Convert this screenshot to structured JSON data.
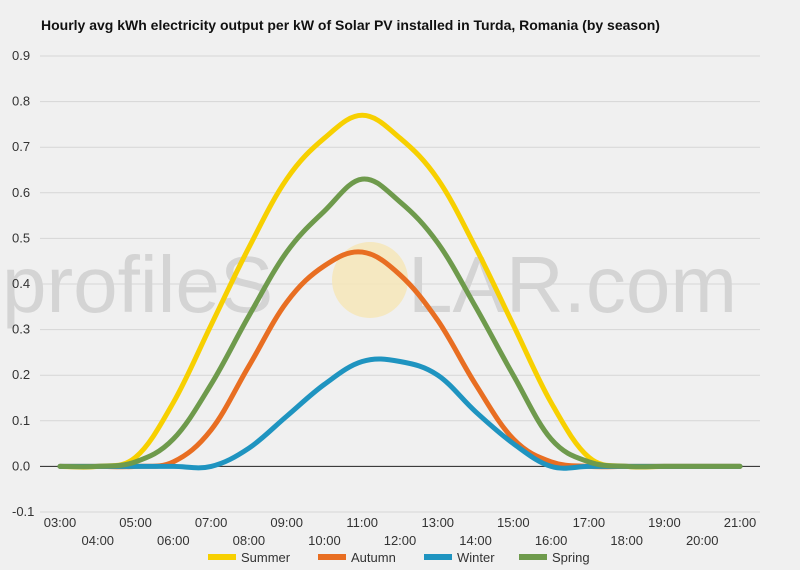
{
  "watermark": {
    "left_text": "profileS",
    "right_text": "LAR.com"
  },
  "chart_data": {
    "type": "line",
    "title": "Hourly avg kWh electricity output per kW of Solar PV installed in Turda, Romania (by season)",
    "xlabel": "",
    "ylabel": "",
    "ylim": [
      -0.1,
      0.9
    ],
    "yticks": [
      -0.1,
      0.0,
      0.1,
      0.2,
      0.3,
      0.4,
      0.5,
      0.6,
      0.7,
      0.8,
      0.9
    ],
    "ytick_labels": [
      "-0.1",
      "0.0",
      "0.1",
      "0.2",
      "0.3",
      "0.4",
      "0.5",
      "0.6",
      "0.7",
      "0.8",
      "0.9"
    ],
    "x": [
      "03:00",
      "04:00",
      "05:00",
      "06:00",
      "07:00",
      "08:00",
      "09:00",
      "10:00",
      "11:00",
      "12:00",
      "13:00",
      "14:00",
      "15:00",
      "16:00",
      "17:00",
      "18:00",
      "19:00",
      "20:00",
      "21:00"
    ],
    "grid": true,
    "legend_position": "bottom",
    "series": [
      {
        "name": "Summer",
        "color": "#f7d000",
        "values": [
          0.0,
          0.0,
          0.02,
          0.14,
          0.31,
          0.48,
          0.63,
          0.72,
          0.77,
          0.72,
          0.63,
          0.48,
          0.31,
          0.14,
          0.02,
          0.0,
          0.0,
          0.0,
          0.0
        ]
      },
      {
        "name": "Autumn",
        "color": "#e86e22",
        "values": [
          0.0,
          0.0,
          0.0,
          0.01,
          0.08,
          0.22,
          0.36,
          0.44,
          0.47,
          0.42,
          0.32,
          0.18,
          0.06,
          0.01,
          0.0,
          0.0,
          0.0,
          0.0,
          0.0
        ]
      },
      {
        "name": "Winter",
        "color": "#1f94c0",
        "values": [
          0.0,
          0.0,
          0.0,
          0.0,
          0.0,
          0.04,
          0.11,
          0.18,
          0.23,
          0.23,
          0.2,
          0.12,
          0.05,
          0.0,
          0.0,
          0.0,
          0.0,
          0.0,
          0.0
        ]
      },
      {
        "name": "Spring",
        "color": "#6e9a4c",
        "values": [
          0.0,
          0.0,
          0.01,
          0.06,
          0.18,
          0.33,
          0.47,
          0.56,
          0.63,
          0.58,
          0.49,
          0.35,
          0.2,
          0.06,
          0.01,
          0.0,
          0.0,
          0.0,
          0.0
        ]
      }
    ]
  }
}
